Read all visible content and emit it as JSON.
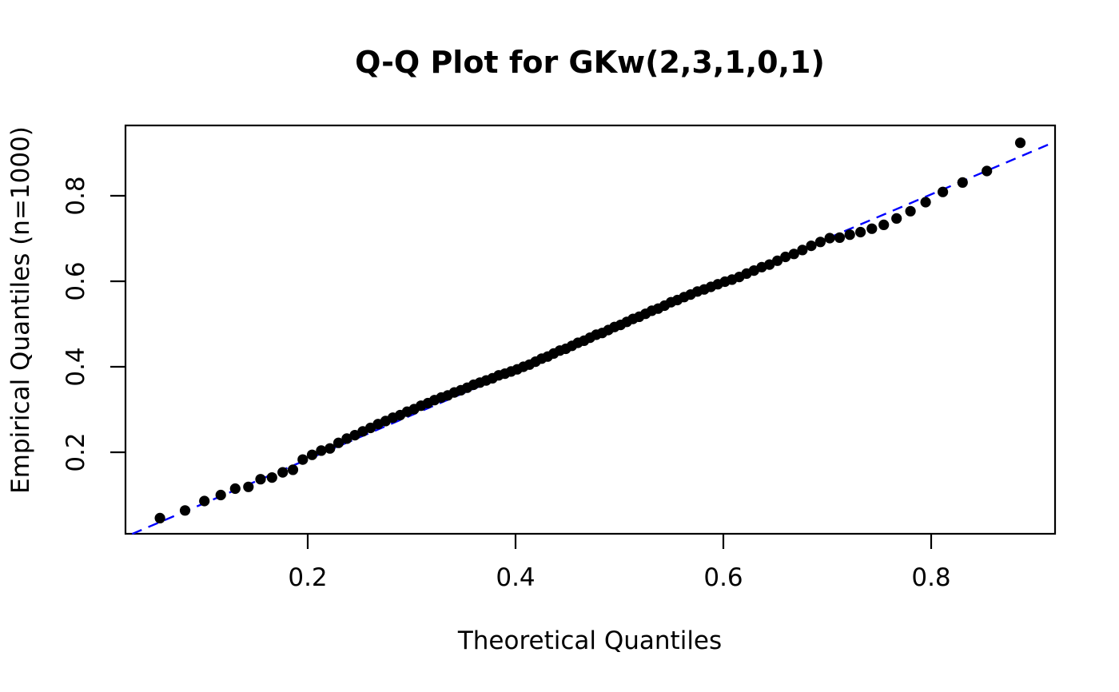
{
  "chart_data": {
    "type": "scatter",
    "title": "Q-Q Plot for GKw(2,3,1,0,1)",
    "xlabel": "Theoretical Quantiles",
    "ylabel": "Empirical Quantiles (n=1000)",
    "x_ticks": [
      0.2,
      0.4,
      0.6,
      0.8
    ],
    "y_ticks": [
      0.2,
      0.4,
      0.6,
      0.8
    ],
    "xlim": [
      0.025,
      0.919
    ],
    "ylim": [
      0.01,
      0.965
    ],
    "grid": "off",
    "legend": "none",
    "point_color": "#000000",
    "reference_line": {
      "style": "dashed",
      "color": "#0000FF",
      "x1": 0.031,
      "y1": 0.009,
      "x2": 0.914,
      "y2": 0.921
    },
    "points": [
      [
        0.0578,
        0.046
      ],
      [
        0.0819,
        0.064
      ],
      [
        0.1005,
        0.086
      ],
      [
        0.1163,
        0.1
      ],
      [
        0.1302,
        0.115
      ],
      [
        0.1429,
        0.119
      ],
      [
        0.1546,
        0.137
      ],
      [
        0.1656,
        0.141
      ],
      [
        0.1759,
        0.153
      ],
      [
        0.1858,
        0.159
      ],
      [
        0.1952,
        0.183
      ],
      [
        0.2042,
        0.194
      ],
      [
        0.213,
        0.204
      ],
      [
        0.2214,
        0.209
      ],
      [
        0.2296,
        0.222
      ],
      [
        0.2376,
        0.232
      ],
      [
        0.2454,
        0.24
      ],
      [
        0.253,
        0.249
      ],
      [
        0.2604,
        0.257
      ],
      [
        0.2677,
        0.266
      ],
      [
        0.2749,
        0.273
      ],
      [
        0.2819,
        0.281
      ],
      [
        0.2889,
        0.287
      ],
      [
        0.2957,
        0.295
      ],
      [
        0.3024,
        0.301
      ],
      [
        0.309,
        0.309
      ],
      [
        0.3156,
        0.315
      ],
      [
        0.322,
        0.322
      ],
      [
        0.3285,
        0.328
      ],
      [
        0.3348,
        0.333
      ],
      [
        0.3411,
        0.34
      ],
      [
        0.3473,
        0.345
      ],
      [
        0.3535,
        0.351
      ],
      [
        0.3596,
        0.358
      ],
      [
        0.3657,
        0.363
      ],
      [
        0.3718,
        0.368
      ],
      [
        0.3778,
        0.373
      ],
      [
        0.3838,
        0.38
      ],
      [
        0.3898,
        0.384
      ],
      [
        0.3957,
        0.389
      ],
      [
        0.4016,
        0.394
      ],
      [
        0.4075,
        0.4
      ],
      [
        0.4134,
        0.405
      ],
      [
        0.4192,
        0.412
      ],
      [
        0.4251,
        0.419
      ],
      [
        0.4309,
        0.424
      ],
      [
        0.4367,
        0.431
      ],
      [
        0.4426,
        0.438
      ],
      [
        0.4484,
        0.442
      ],
      [
        0.4542,
        0.449
      ],
      [
        0.46,
        0.456
      ],
      [
        0.4659,
        0.461
      ],
      [
        0.4717,
        0.468
      ],
      [
        0.4776,
        0.475
      ],
      [
        0.4834,
        0.479
      ],
      [
        0.4893,
        0.486
      ],
      [
        0.4952,
        0.493
      ],
      [
        0.5011,
        0.498
      ],
      [
        0.5071,
        0.505
      ],
      [
        0.513,
        0.512
      ],
      [
        0.519,
        0.517
      ],
      [
        0.5251,
        0.524
      ],
      [
        0.5311,
        0.531
      ],
      [
        0.5372,
        0.536
      ],
      [
        0.5434,
        0.543
      ],
      [
        0.5496,
        0.551
      ],
      [
        0.5558,
        0.556
      ],
      [
        0.5622,
        0.563
      ],
      [
        0.5685,
        0.569
      ],
      [
        0.575,
        0.576
      ],
      [
        0.5815,
        0.581
      ],
      [
        0.588,
        0.587
      ],
      [
        0.5947,
        0.593
      ],
      [
        0.6015,
        0.599
      ],
      [
        0.6083,
        0.604
      ],
      [
        0.6153,
        0.61
      ],
      [
        0.6223,
        0.618
      ],
      [
        0.6295,
        0.625
      ],
      [
        0.6369,
        0.633
      ],
      [
        0.6444,
        0.639
      ],
      [
        0.652,
        0.648
      ],
      [
        0.6598,
        0.657
      ],
      [
        0.6679,
        0.664
      ],
      [
        0.6761,
        0.673
      ],
      [
        0.6846,
        0.683
      ],
      [
        0.6934,
        0.692
      ],
      [
        0.7024,
        0.701
      ],
      [
        0.7119,
        0.702
      ],
      [
        0.7217,
        0.709
      ],
      [
        0.732,
        0.715
      ],
      [
        0.7429,
        0.723
      ],
      [
        0.7544,
        0.732
      ],
      [
        0.7667,
        0.747
      ],
      [
        0.7801,
        0.764
      ],
      [
        0.7947,
        0.785
      ],
      [
        0.8112,
        0.809
      ],
      [
        0.8302,
        0.831
      ],
      [
        0.8536,
        0.858
      ],
      [
        0.8858,
        0.924
      ]
    ]
  }
}
